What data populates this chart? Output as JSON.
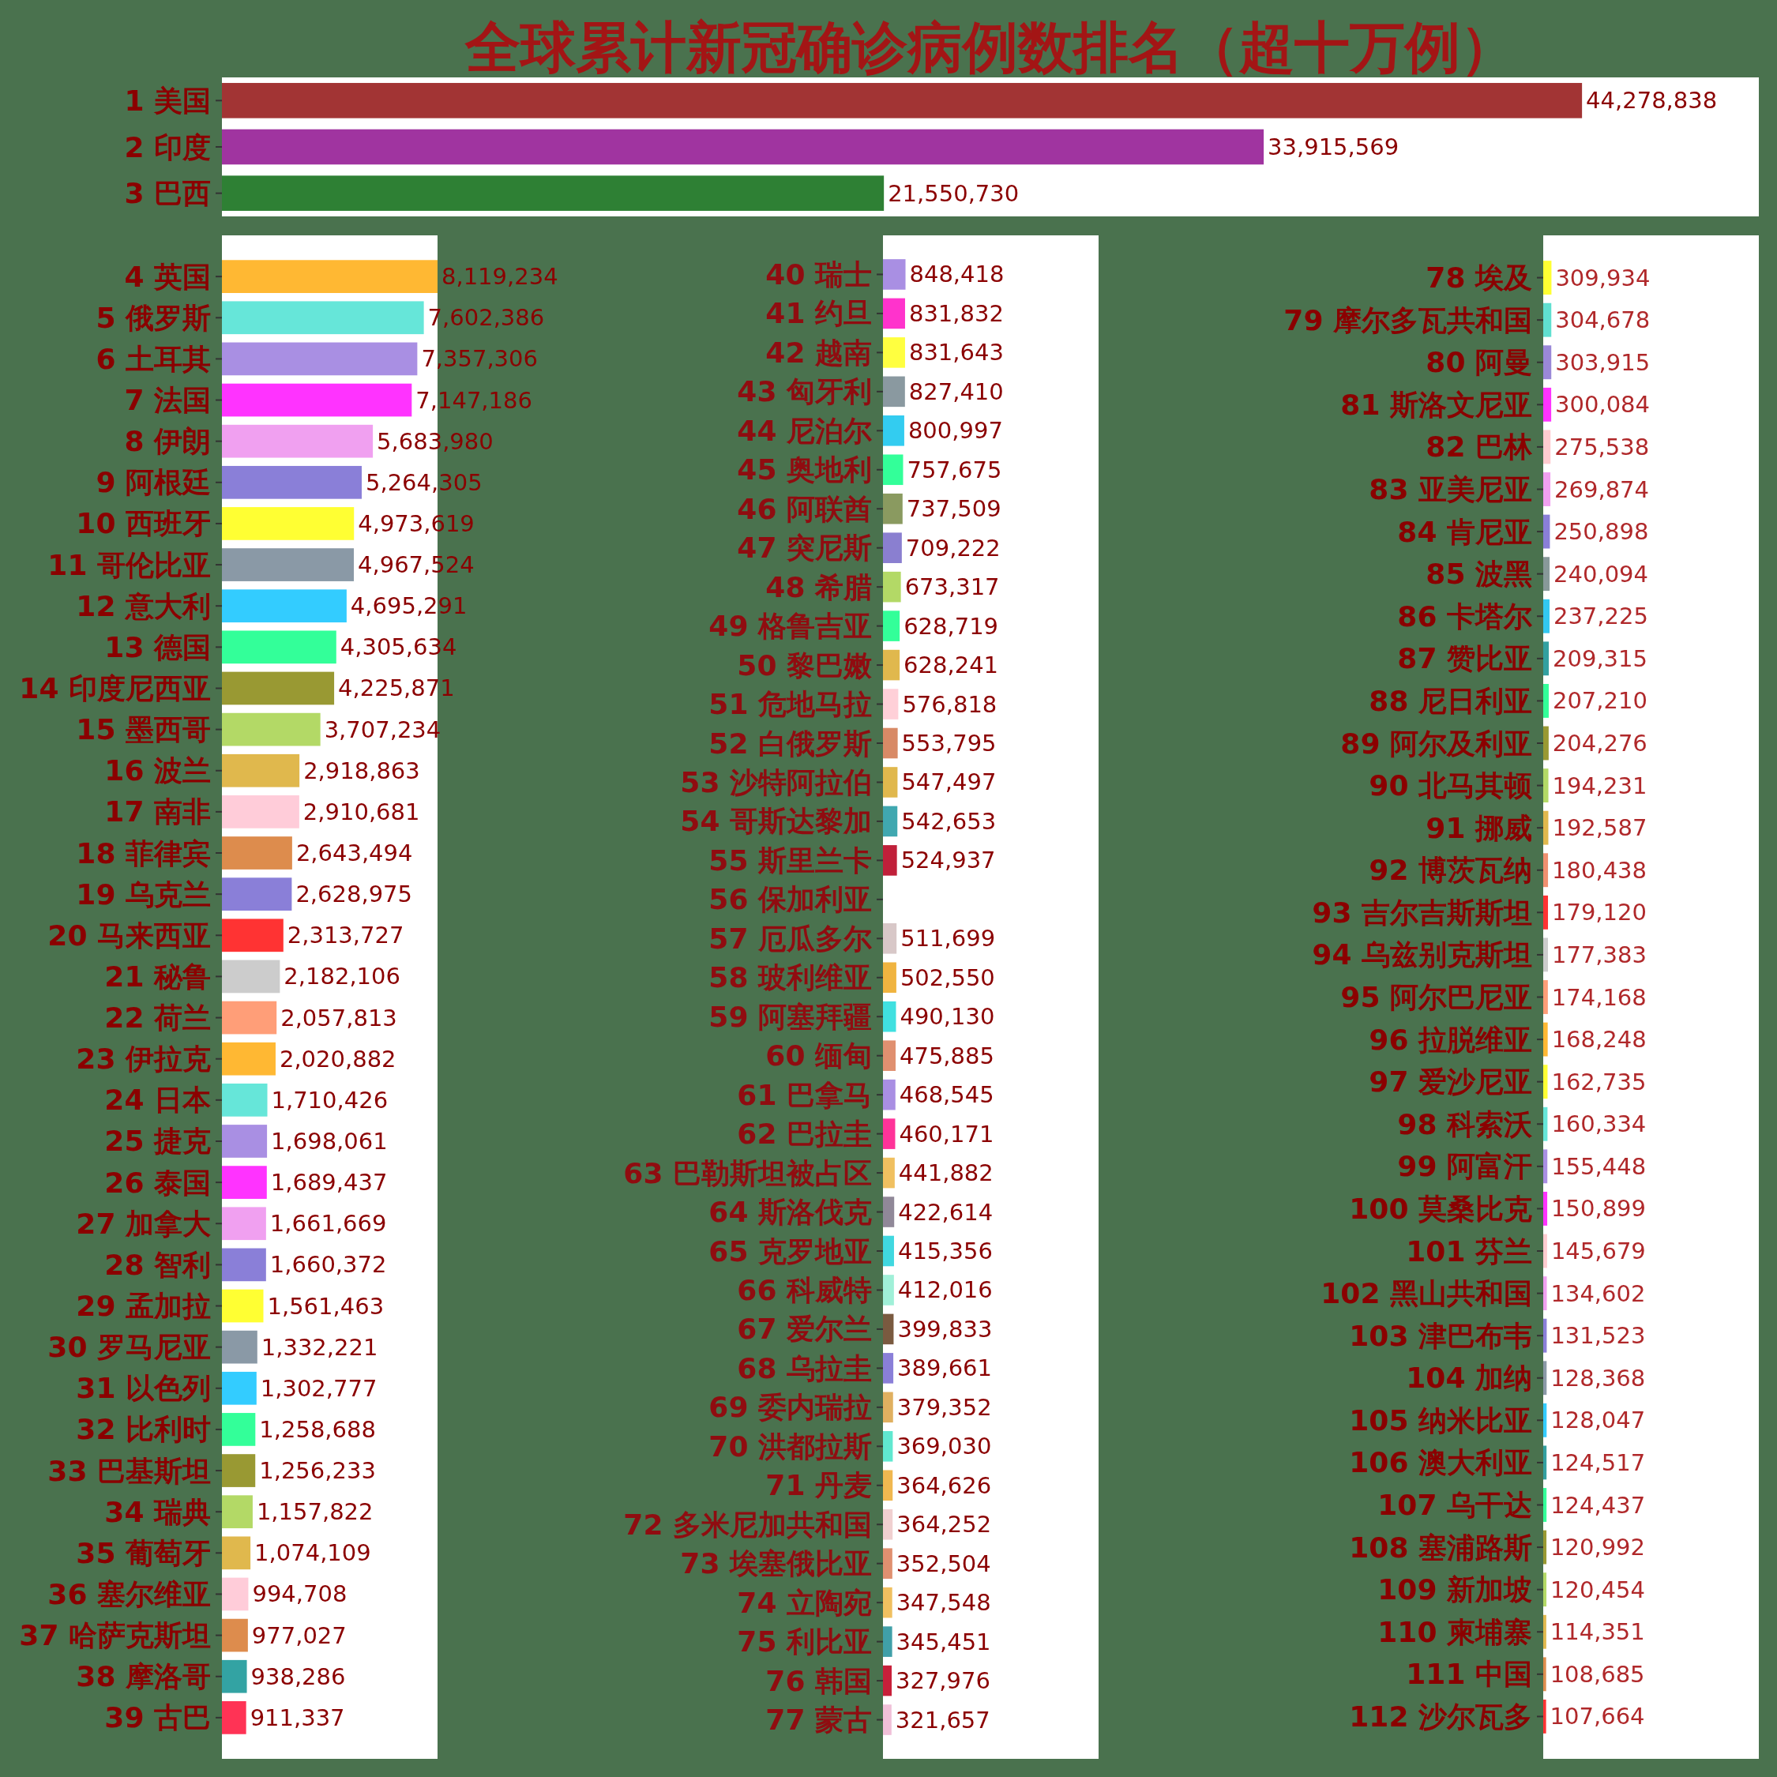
{
  "chart_data": [
    {
      "type": "bar",
      "orientation": "horizontal",
      "title": "全球累计新冠确诊病例数排名（超十万例）",
      "tick_labels": "y",
      "categories": [
        "1 美国",
        "2 印度",
        "3 巴西"
      ],
      "values": [
        44278838,
        33915569,
        21550730
      ],
      "value_labels": [
        "44,278,838",
        "33,915,569",
        "21,550,730"
      ],
      "colors": [
        "#a23434",
        "#a034a0",
        "#2e8034"
      ]
    },
    {
      "type": "bar",
      "orientation": "horizontal",
      "tick_labels": "y",
      "categories": [
        "4 英国",
        "5 俄罗斯",
        "6 土耳其",
        "7 法国",
        "8 伊朗",
        "9 阿根廷",
        "10 西班牙",
        "11 哥伦比亚",
        "12 意大利",
        "13 德国",
        "14 印度尼西亚",
        "15 墨西哥",
        "16 波兰",
        "17 南非",
        "18 菲律宾",
        "19 乌克兰",
        "20 马来西亚",
        "21 秘鲁",
        "22 荷兰",
        "23 伊拉克",
        "24 日本",
        "25 捷克",
        "26 泰国",
        "27 加拿大",
        "28 智利",
        "29 孟加拉",
        "30 罗马尼亚",
        "31 以色列",
        "32 比利时",
        "33 巴基斯坦",
        "34 瑞典",
        "35 葡萄牙",
        "36 塞尔维亚",
        "37 哈萨克斯坦",
        "38 摩洛哥",
        "39 古巴"
      ],
      "values": [
        8119234,
        7602386,
        7357306,
        7147186,
        5683980,
        5264305,
        4973619,
        4967524,
        4695291,
        4305634,
        4225871,
        3707234,
        2918863,
        2910681,
        2643494,
        2628975,
        2313727,
        2182106,
        2057813,
        2020882,
        1710426,
        1698061,
        1689437,
        1661669,
        1660372,
        1561463,
        1332221,
        1302777,
        1258688,
        1256233,
        1157822,
        1074109,
        994708,
        977027,
        938286,
        911337
      ],
      "value_labels": [
        "8,119,234",
        "7,602,386",
        "7,357,306",
        "7,147,186",
        "5,683,980",
        "5,264,305",
        "4,973,619",
        "4,967,524",
        "4,695,291",
        "4,305,634",
        "4,225,871",
        "3,707,234",
        "2,918,863",
        "2,910,681",
        "2,643,494",
        "2,628,975",
        "2,313,727",
        "2,182,106",
        "2,057,813",
        "2,020,882",
        "1,710,426",
        "1,698,061",
        "1,689,437",
        "1,661,669",
        "1,660,372",
        "1,561,463",
        "1,332,221",
        "1,302,777",
        "1,258,688",
        "1,256,233",
        "1,157,822",
        "1,074,109",
        "994,708",
        "977,027",
        "938,286",
        "911,337"
      ],
      "colors": [
        "#ffb833",
        "#66e6d9",
        "#a98fe3",
        "#ff33ff",
        "#f0a0f0",
        "#8a7fd8",
        "#ffff33",
        "#8a99a6",
        "#33ccff",
        "#33ff99",
        "#999933",
        "#b3d966",
        "#e0b84d",
        "#ffccd9",
        "#dd8c4d",
        "#8a7fd8",
        "#ff3333",
        "#cccccc",
        "#ff9e78",
        "#ffb833",
        "#66e6d9",
        "#a98fe3",
        "#ff33ff",
        "#f0a0f0",
        "#8a7fd8",
        "#ffff33",
        "#8a99a6",
        "#33ccff",
        "#33ff99",
        "#999933",
        "#b3d966",
        "#e0b84d",
        "#ffccd9",
        "#dd8c4d",
        "#33a3a3",
        "#ff3355"
      ]
    },
    {
      "type": "bar",
      "orientation": "horizontal",
      "tick_labels": "y",
      "categories": [
        "40 瑞士",
        "41 约旦",
        "42 越南",
        "43 匈牙利",
        "44 尼泊尔",
        "45 奥地利",
        "46 阿联酋",
        "47 突尼斯",
        "48 希腊",
        "49 格鲁吉亚",
        "50 黎巴嫩",
        "51 危地马拉",
        "52 白俄罗斯",
        "53 沙特阿拉伯",
        "54 哥斯达黎加",
        "55 斯里兰卡",
        "56 保加利亚",
        "57 厄瓜多尔",
        "58 玻利维亚",
        "59 阿塞拜疆",
        "60 缅甸",
        "61 巴拿马",
        "62 巴拉圭",
        "63 巴勒斯坦被占区",
        "64 斯洛伐克",
        "65 克罗地亚",
        "66 科威特",
        "67 爱尔兰",
        "68 乌拉圭",
        "69 委内瑞拉",
        "70 洪都拉斯",
        "71 丹麦",
        "72 多米尼加共和国",
        "73 埃塞俄比亚",
        "74 立陶宛",
        "75 利比亚",
        "76 韩国",
        "77 蒙古"
      ],
      "values": [
        848418,
        831832,
        831643,
        827410,
        800997,
        757675,
        737509,
        709222,
        673317,
        628719,
        628241,
        576818,
        553795,
        547497,
        542653,
        524937,
        null,
        511699,
        502550,
        490130,
        475885,
        468545,
        460171,
        441882,
        422614,
        415356,
        412016,
        399833,
        389661,
        379352,
        369030,
        364626,
        364252,
        352504,
        347548,
        345451,
        327976,
        321657
      ],
      "value_labels": [
        "848,418",
        "831,832",
        "831,643",
        "827,410",
        "800,997",
        "757,675",
        "737,509",
        "709,222",
        "673,317",
        "628,719",
        "628,241",
        "576,818",
        "553,795",
        "547,497",
        "542,653",
        "524,937",
        null,
        "511,699",
        "502,550",
        "490,130",
        "475,885",
        "468,545",
        "460,171",
        "441,882",
        "422,614",
        "415,356",
        "412,016",
        "399,833",
        "389,661",
        "379,352",
        "369,030",
        "364,626",
        "364,252",
        "352,504",
        "347,548",
        "345,451",
        "327,976",
        "321,657"
      ],
      "colors": [
        "#a98fe3",
        "#ff33cc",
        "#ffff40",
        "#8a99a0",
        "#33ccf0",
        "#33ff99",
        "#8a9a60",
        "#8a7fd0",
        "#b3d966",
        "#33ff99",
        "#e0b84d",
        "#ffd0d8",
        "#d88a66",
        "#e0b84d",
        "#40a8b0",
        "#c0203a",
        "#a98fe3",
        "#d8c8c8",
        "#f0b440",
        "#40e0e0",
        "#e09070",
        "#a98fe3",
        "#ff3399",
        "#f0c060",
        "#908898",
        "#40d8e0",
        "#a0f0d8",
        "#7a5a40",
        "#8a7fd8",
        "#e0b060",
        "#60e8d0",
        "#f0b850",
        "#f0d0d0",
        "#e09070",
        "#f0c060",
        "#40a0a8",
        "#c8203a",
        "#f0c0d8"
      ]
    },
    {
      "type": "bar",
      "orientation": "horizontal",
      "tick_labels": "y",
      "categories": [
        "78 埃及",
        "79 摩尔多瓦共和国",
        "80 阿曼",
        "81 斯洛文尼亚",
        "82 巴林",
        "83 亚美尼亚",
        "84 肯尼亚",
        "85 波黑",
        "86 卡塔尔",
        "87 赞比亚",
        "88 尼日利亚",
        "89 阿尔及利亚",
        "90 北马其顿",
        "91 挪威",
        "92 博茨瓦纳",
        "93 吉尔吉斯斯坦",
        "94 乌兹别克斯坦",
        "95 阿尔巴尼亚",
        "96 拉脱维亚",
        "97 爱沙尼亚",
        "98 科索沃",
        "99 阿富汗",
        "100 莫桑比克",
        "101 芬兰",
        "102 黑山共和国",
        "103 津巴布韦",
        "104 加纳",
        "105 纳米比亚",
        "106 澳大利亚",
        "107 乌干达",
        "108 塞浦路斯",
        "109 新加坡",
        "110 柬埔寨",
        "111 中国",
        "112 沙尔瓦多"
      ],
      "values": [
        309934,
        304678,
        303915,
        300084,
        275538,
        269874,
        250898,
        240094,
        237225,
        209315,
        207210,
        204276,
        194231,
        192587,
        180438,
        179120,
        177383,
        174168,
        168248,
        162735,
        160334,
        155448,
        150899,
        145679,
        134602,
        131523,
        128368,
        128047,
        124517,
        124437,
        120992,
        120454,
        114351,
        108685,
        107664
      ],
      "value_labels": [
        "309,934",
        "304,678",
        "303,915",
        "300,084",
        "275,538",
        "269,874",
        "250,898",
        "240,094",
        "237,225",
        "209,315",
        "207,210",
        "204,276",
        "194,231",
        "192,587",
        "180,438",
        "179,120",
        "177,383",
        "174,168",
        "168,248",
        "162,735",
        "160,334",
        "155,448",
        "150,899",
        "145,679",
        "134,602",
        "131,523",
        "128,368",
        "128,047",
        "124,517",
        "124,437",
        "120,992",
        "120,454",
        "114,351",
        "108,685",
        "107,664"
      ],
      "colors": [
        "#ffff33",
        "#60e0d0",
        "#9a88d8",
        "#ff33ff",
        "#ffccd0",
        "#f0a0f0",
        "#8a7fd8",
        "#889999",
        "#33c8f0",
        "#33a0a0",
        "#33ff99",
        "#999933",
        "#b3d966",
        "#e0b84d",
        "#f09070",
        "#ff3333",
        "#cccccc",
        "#ff9e78",
        "#ffb833",
        "#ffff33",
        "#66e6d9",
        "#a98fe3",
        "#ff33ff",
        "#ffccd0",
        "#f0a0f0",
        "#8a7fd8",
        "#8a99a6",
        "#33ccff",
        "#33a0a0",
        "#33ff99",
        "#999933",
        "#b3d966",
        "#e0b84d",
        "#dd8c4d",
        "#ff3333"
      ]
    }
  ]
}
